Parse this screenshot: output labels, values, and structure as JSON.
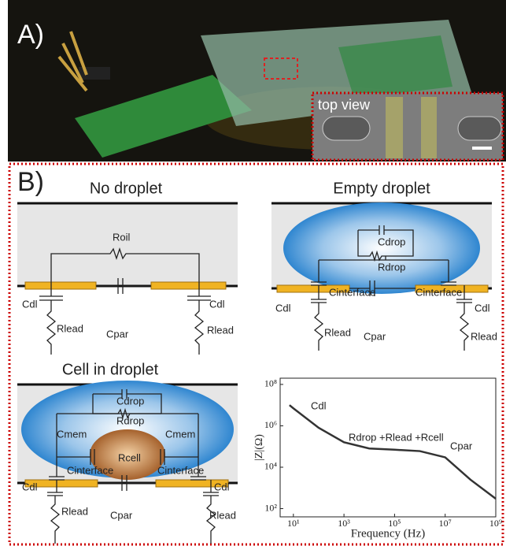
{
  "panel_a": {
    "label": "A)",
    "inset_label": "top view"
  },
  "panel_b": {
    "label": "B)",
    "no_droplet": {
      "title": "No droplet",
      "labels": [
        "Roil",
        "Cdl",
        "Cdl",
        "Rlead",
        "Cpar",
        "Rlead"
      ]
    },
    "empty_droplet": {
      "title": "Empty droplet",
      "labels": [
        "Cdrop",
        "Rdrop",
        "Cinterface",
        "Cinterface",
        "Cdl",
        "Cdl",
        "Rlead",
        "Cpar",
        "Rlead"
      ]
    },
    "cell_in_droplet": {
      "title": "Cell in droplet",
      "labels": [
        "Cdrop",
        "Rdrop",
        "Cmem",
        "Cmem",
        "Rcell",
        "Cinterface",
        "Cinterface",
        "Cdl",
        "Cdl",
        "Rlead",
        "Cpar",
        "Rlead"
      ]
    }
  },
  "chart_data": {
    "type": "line",
    "xlabel": "Frequency (Hz)",
    "ylabel": "|Z|(Ω)",
    "x": [
      7,
      10,
      100,
      1000,
      10000,
      100000,
      1000000,
      10000000,
      100000000,
      1000000000
    ],
    "series": [
      {
        "color": "#333333",
        "values": [
          10000000,
          7000000,
          800000,
          160000,
          80000,
          70000,
          60000,
          30000,
          2500,
          300
        ]
      }
    ],
    "annotations": [
      "Cdl",
      "Rdrop +Rlead +Rcell",
      "Cpar"
    ],
    "log_x": true,
    "log_y": true,
    "xlim": [
      3,
      1000000000
    ],
    "ylim": [
      40,
      200000000
    ],
    "xticks": [
      {
        "value": 10,
        "label": "10¹"
      },
      {
        "value": 1000,
        "label": "10³"
      },
      {
        "value": 100000,
        "label": "10⁵"
      },
      {
        "value": 10000000,
        "label": "10⁷"
      },
      {
        "value": 1000000000,
        "label": "10⁹"
      }
    ],
    "yticks": [
      {
        "value": 100,
        "label": "10²"
      },
      {
        "value": 10000,
        "label": "10⁴"
      },
      {
        "value": 1000000,
        "label": "10⁶"
      },
      {
        "value": 100000000,
        "label": "10⁸"
      }
    ]
  }
}
